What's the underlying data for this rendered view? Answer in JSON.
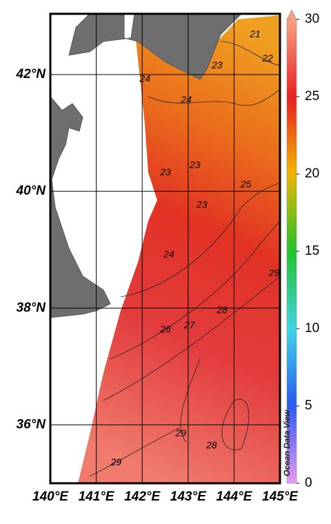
{
  "chart_data": {
    "type": "map",
    "xlim": [
      140,
      145
    ],
    "ylim": [
      35,
      43.04
    ],
    "xticks": [
      {
        "value": 140,
        "label": "140°E"
      },
      {
        "value": 141,
        "label": "141°E"
      },
      {
        "value": 142,
        "label": "142°E"
      },
      {
        "value": 143,
        "label": "143°E"
      },
      {
        "value": 144,
        "label": "144°E"
      },
      {
        "value": 145,
        "label": "145°E"
      }
    ],
    "yticks": [
      {
        "value": 36,
        "label": "36°N"
      },
      {
        "value": 38,
        "label": "38°N"
      },
      {
        "value": 40,
        "label": "40°N"
      },
      {
        "value": 42,
        "label": "42°N"
      }
    ],
    "grid": true,
    "colorbar": {
      "lim": [
        0,
        30
      ],
      "ticks": [
        0,
        5,
        10,
        15,
        20,
        25,
        30
      ]
    },
    "contour_labels": [
      {
        "value": 21,
        "lon": 144.46,
        "lat": 42.68
      },
      {
        "value": 22,
        "lon": 144.73,
        "lat": 42.27
      },
      {
        "value": 23,
        "lon": 143.63,
        "lat": 42.15
      },
      {
        "value": 24,
        "lon": 142.06,
        "lat": 41.92
      },
      {
        "value": 24,
        "lon": 142.96,
        "lat": 41.56
      },
      {
        "value": 23,
        "lon": 142.51,
        "lat": 40.32
      },
      {
        "value": 23,
        "lon": 143.15,
        "lat": 40.44
      },
      {
        "value": 23,
        "lon": 143.3,
        "lat": 39.76
      },
      {
        "value": 25,
        "lon": 144.26,
        "lat": 40.11
      },
      {
        "value": 24,
        "lon": 142.58,
        "lat": 38.91
      },
      {
        "value": 29,
        "lon": 144.87,
        "lat": 38.59
      },
      {
        "value": 26,
        "lon": 142.51,
        "lat": 37.63
      },
      {
        "value": 27,
        "lon": 143.03,
        "lat": 37.7
      },
      {
        "value": 28,
        "lon": 143.74,
        "lat": 37.96
      },
      {
        "value": 29,
        "lon": 142.84,
        "lat": 35.85
      },
      {
        "value": 28,
        "lon": 143.51,
        "lat": 35.64
      },
      {
        "value": 29,
        "lon": 141.43,
        "lat": 35.35
      }
    ],
    "watermark": "Ocean Data View"
  }
}
